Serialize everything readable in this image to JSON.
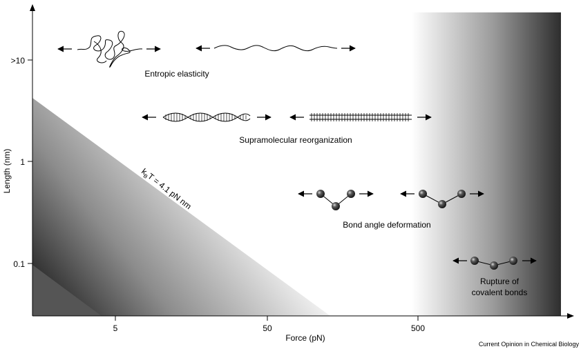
{
  "axes": {
    "xlabel": "Force (pN)",
    "ylabel": "Length (nm)",
    "x_ticks": [
      "5",
      "50",
      "500"
    ],
    "y_ticks": [
      ">10",
      "1",
      "0.1"
    ],
    "scale": "log-log"
  },
  "annotations": {
    "entropic": "Entropic elasticity",
    "supramolecular": "Supramolecular reorganization",
    "bond_angle": "Bond angle deformation",
    "rupture_line1": "Rupture of",
    "rupture_line2": "covalent bonds",
    "kbt_k": "k",
    "kbt_sub": "B",
    "kbt_rest": "T = 4.1 pN nm"
  },
  "credit": "Current Opinion in Chemical Biology",
  "colors": {
    "axis": "#000000",
    "shade_dark": "#0a0a0a",
    "shade_light": "#ffffff",
    "bead": "#2a2a2a"
  },
  "icons": [
    "random-coil-polymer",
    "extended-polymer",
    "dna-double-helix",
    "ladder-structure",
    "bent-triatomic-molecule",
    "stretched-triatomic-molecule",
    "covalent-rupture-molecule",
    "double-headed-arrow"
  ]
}
